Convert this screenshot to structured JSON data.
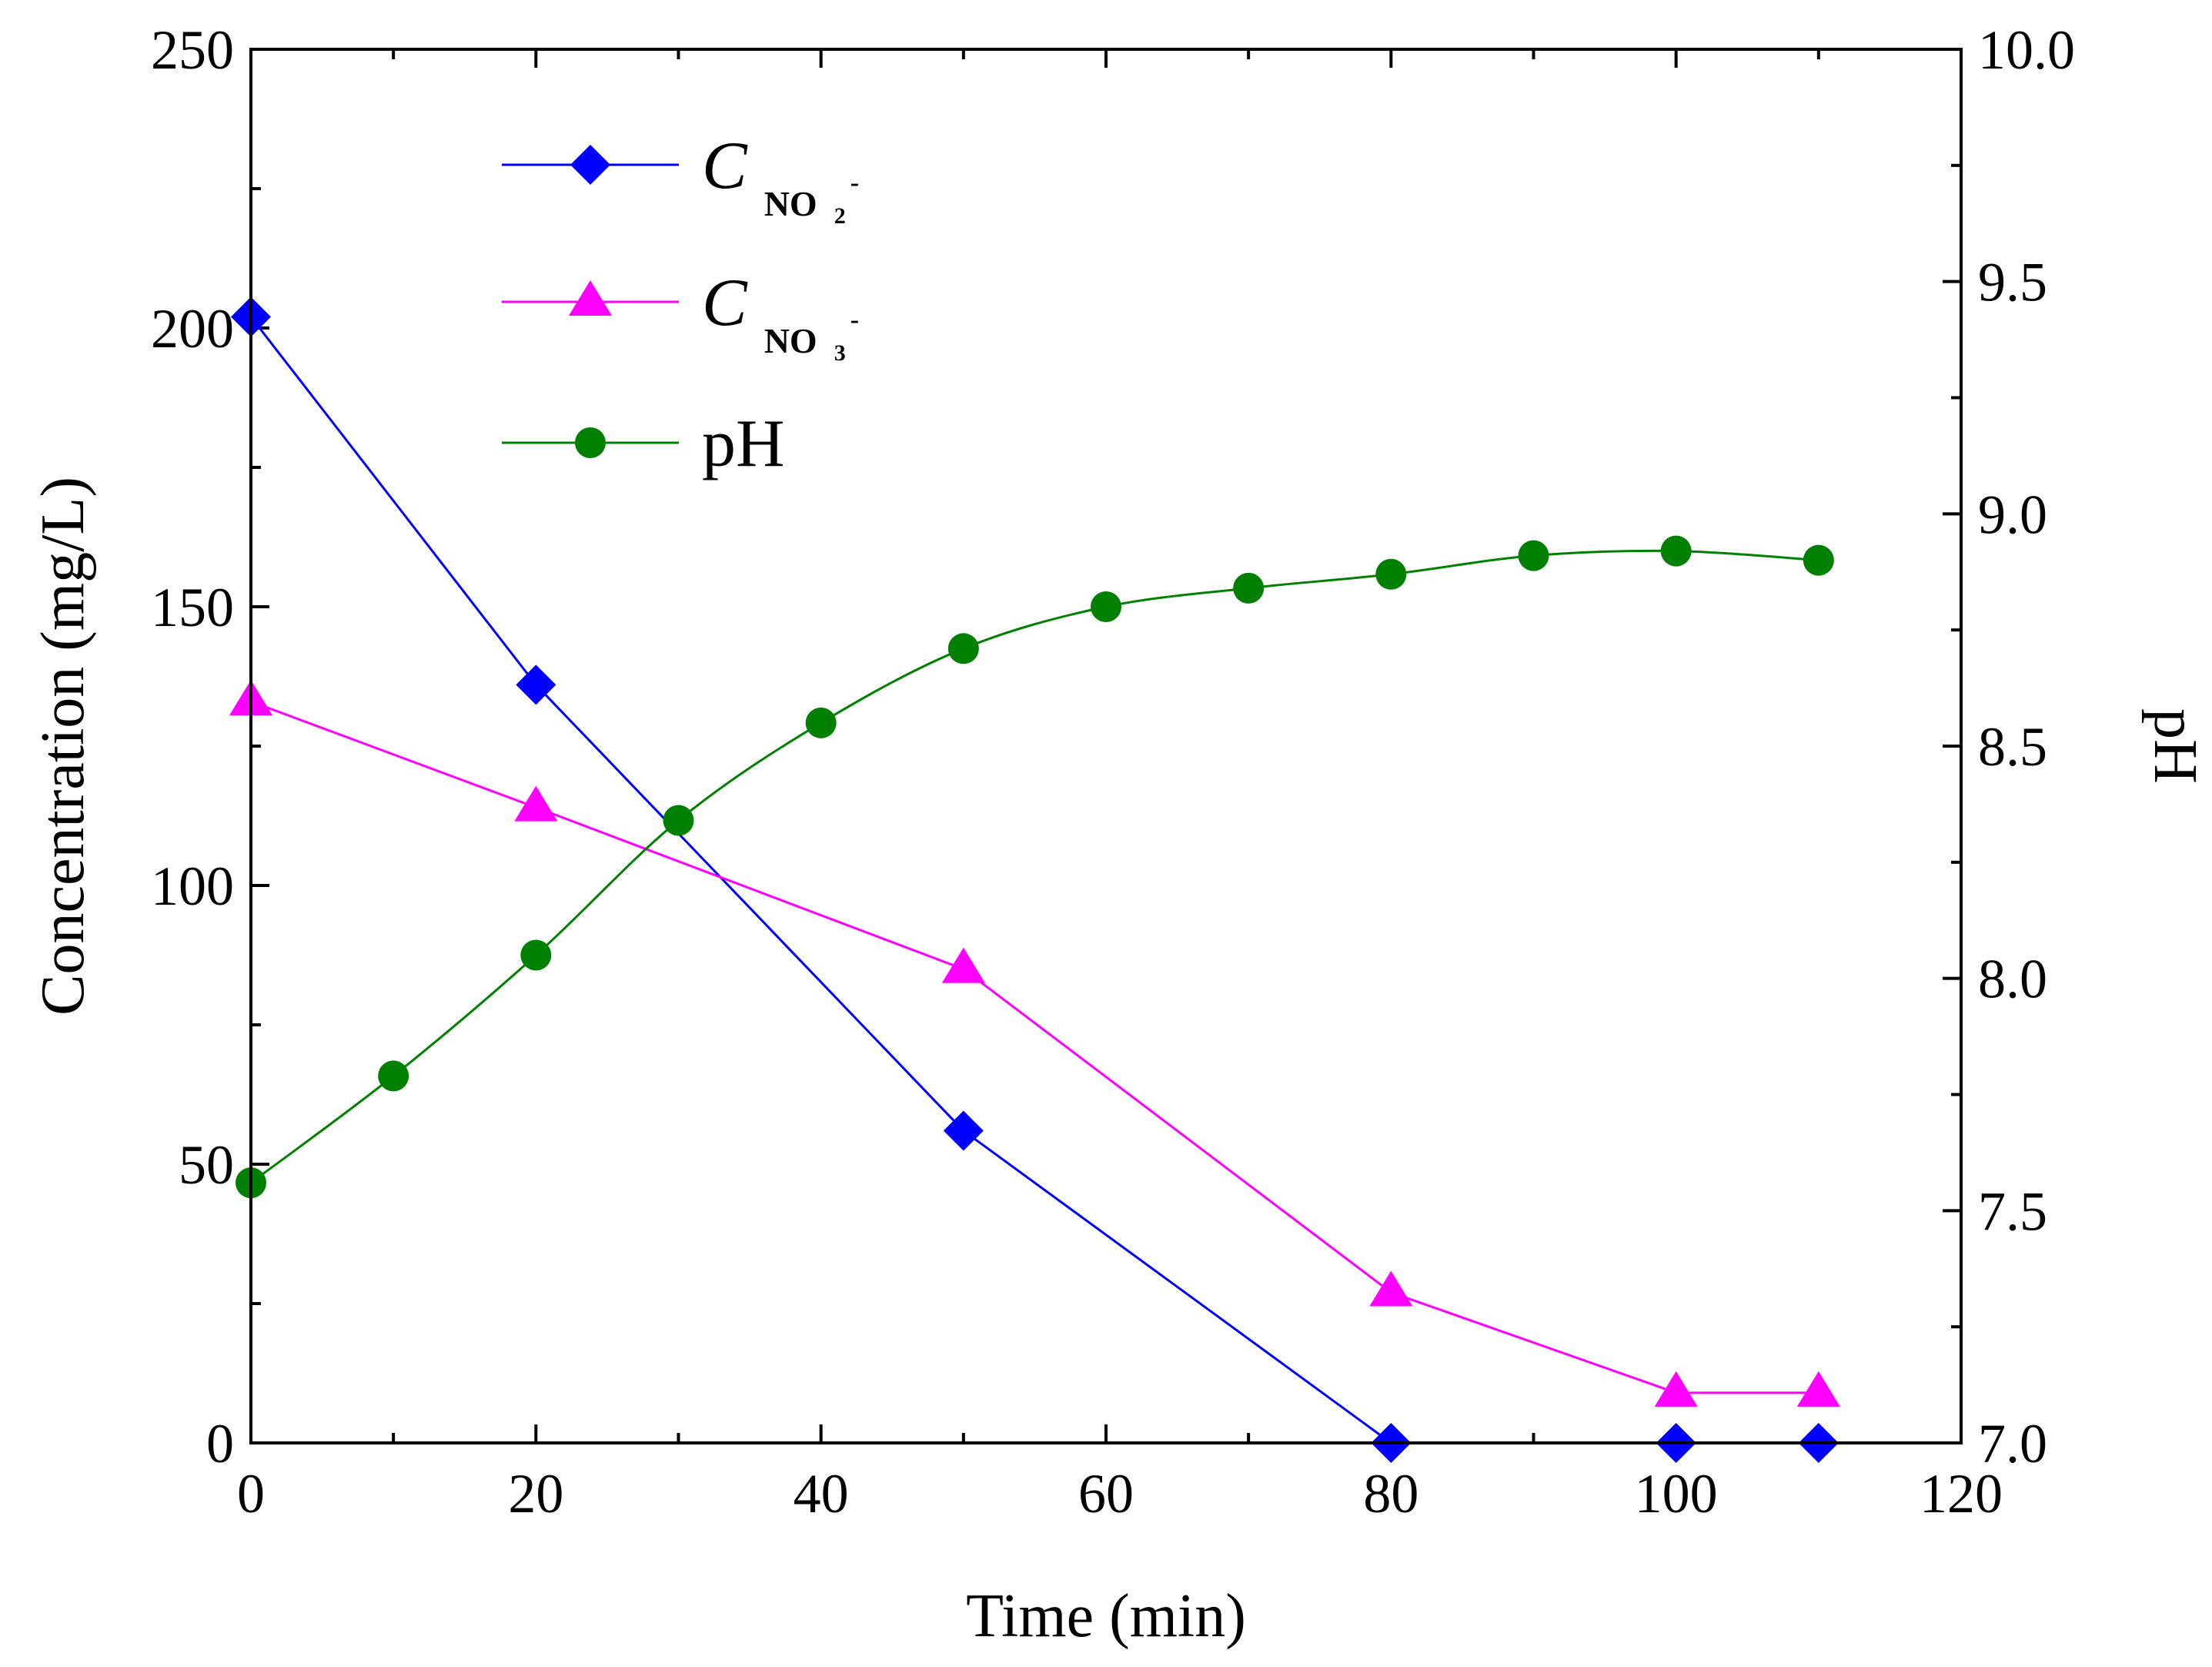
{
  "chart_data": {
    "type": "line",
    "title": "",
    "xlabel": "Time (min)",
    "ylabel_left": "Concentration (mg/L)",
    "ylabel_right": "pH",
    "xlim": [
      0,
      120
    ],
    "ylim_left": [
      0,
      250
    ],
    "ylim_right": [
      7.0,
      10.0
    ],
    "x_ticks": [
      "0",
      "20",
      "40",
      "60",
      "80",
      "100",
      "120"
    ],
    "y_left_ticks": [
      "0",
      "50",
      "100",
      "150",
      "200",
      "250"
    ],
    "y_right_ticks": [
      "7.0",
      "7.5",
      "8.0",
      "8.5",
      "9.0",
      "9.5",
      "10.0"
    ],
    "legend_position": "top-left",
    "grid": false,
    "series": [
      {
        "name": "C_NO2-",
        "legend_main": "C",
        "legend_sub": "NO",
        "legend_sub_num": "2",
        "legend_sup": "-",
        "color": "#0000ff",
        "marker": "diamond",
        "axis": "left",
        "x": [
          0,
          20,
          50,
          80,
          100,
          110
        ],
        "values": [
          202,
          136,
          56,
          0,
          0,
          0
        ]
      },
      {
        "name": "C_NO3-",
        "legend_main": "C",
        "legend_sub": "NO",
        "legend_sub_num": "3",
        "legend_sup": "-",
        "color": "#ff00ff",
        "marker": "triangle",
        "axis": "left",
        "x": [
          0,
          20,
          50,
          80,
          100,
          110
        ],
        "values": [
          133,
          114,
          85,
          27,
          9,
          9
        ]
      },
      {
        "name": "pH",
        "legend_main": "pH",
        "color": "#008000",
        "marker": "circle",
        "axis": "right",
        "x": [
          0,
          10,
          20,
          30,
          40,
          50,
          60,
          70,
          80,
          90,
          100,
          110
        ],
        "values": [
          7.56,
          7.79,
          8.05,
          8.34,
          8.55,
          8.71,
          8.8,
          8.84,
          8.87,
          8.91,
          8.92,
          8.9
        ]
      }
    ]
  }
}
